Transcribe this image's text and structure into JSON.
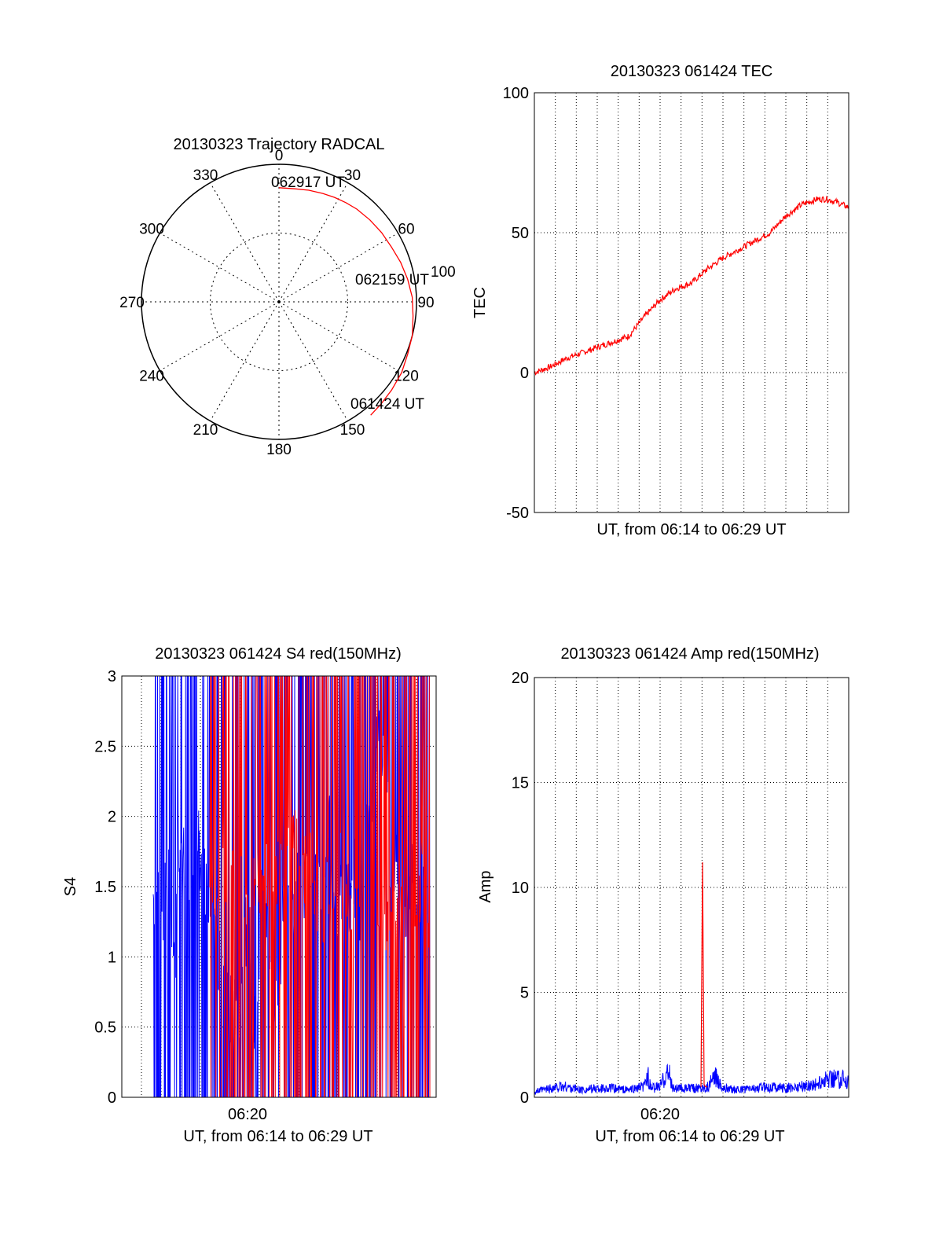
{
  "colors": {
    "red": "#ff0000",
    "blue": "#0000ff",
    "axis": "#000000",
    "grid": "#000000"
  },
  "chart_data": [
    {
      "type": "polar",
      "title": "20130323 Trajectory RADCAL",
      "angle_labels": [
        "0",
        "30",
        "60",
        "90",
        "120",
        "150",
        "180",
        "210",
        "240",
        "270",
        "300",
        "330"
      ],
      "radial_label": "100",
      "rmax": 100,
      "trajectory": {
        "azimuth_deg": [
          0,
          8,
          15,
          22,
          28,
          34,
          40,
          48,
          56,
          64,
          72,
          80,
          88,
          96,
          104,
          112,
          120,
          128,
          135,
          141
        ],
        "radius": [
          83,
          83,
          84,
          85,
          86,
          87,
          88,
          89,
          90,
          91,
          93,
          95,
          97,
          98,
          100,
          101,
          103,
          104,
          105,
          106
        ],
        "start_label": "062917 UT",
        "mid_label": "062159 UT",
        "end_label": "061424 UT"
      }
    },
    {
      "type": "line",
      "title": "20130323 061424 TEC",
      "xlabel": "UT, from 06:14 to 06:29 UT",
      "ylabel": "TEC",
      "ylim": [
        -50,
        100
      ],
      "yticks": [
        "100",
        "50",
        "0",
        "-50"
      ],
      "series": [
        {
          "name": "TEC",
          "color": "red",
          "x": [
            0,
            0.05,
            0.1,
            0.15,
            0.2,
            0.25,
            0.3,
            0.35,
            0.4,
            0.45,
            0.5,
            0.55,
            0.6,
            0.65,
            0.7,
            0.75,
            0.8,
            0.85,
            0.9,
            0.93,
            0.96,
            1.0
          ],
          "y": [
            0,
            2,
            5,
            7,
            9,
            11,
            13,
            20,
            26,
            30,
            32,
            37,
            41,
            44,
            47,
            50,
            56,
            60,
            62,
            62,
            61,
            59
          ]
        }
      ]
    },
    {
      "type": "line",
      "title": "20130323 061424 S4 red(150MHz)",
      "xlabel": "UT, from 06:14 to 06:29 UT",
      "ylabel": "S4",
      "ylim": [
        0,
        3
      ],
      "yticks": [
        "3",
        "2.5",
        "2",
        "1.5",
        "1",
        "0.5",
        "0"
      ],
      "xtick_label": "06:20",
      "series": [
        {
          "name": "S4 blue",
          "color": "blue",
          "oscillation": [
            0,
            3
          ],
          "x": [
            0.1,
            0.12,
            0.13,
            0.14,
            0.15,
            0.16,
            0.17,
            0.18,
            0.2,
            0.22,
            0.24,
            0.26,
            0.28,
            0.3,
            0.32,
            0.34,
            0.36,
            0.38,
            0.4,
            0.42,
            0.44,
            0.46,
            0.48,
            0.5,
            0.52,
            0.54,
            0.56,
            0.58,
            0.6,
            0.62,
            0.64,
            0.66,
            0.68,
            0.7,
            0.72,
            0.74,
            0.76,
            0.78,
            0.8,
            0.82,
            0.84,
            0.86,
            0.88,
            0.9,
            0.92,
            0.94,
            0.96,
            0.98
          ],
          "y": [
            1.4,
            1.3,
            1.0,
            1.5,
            1.7,
            1.1,
            0.9,
            1.9,
            1.6,
            1.3,
            1.9,
            1.6,
            1.5,
            1.0,
            0.8,
            0.6,
            0.7,
            0.5,
            1.4,
            0.6,
            0.8,
            1.3,
            0.7,
            0.9,
            1.5,
            1.2,
            1.6,
            1.4,
            1.7,
            1.5,
            1.5,
            1.9,
            1.3,
            1.5,
            1.4,
            1.6,
            1.2,
            1.9,
            2.2,
            2.7,
            2.3,
            1.8,
            1.5,
            1.4,
            1.6,
            1.3,
            1.5,
            1.6
          ]
        },
        {
          "name": "S4 red",
          "color": "red",
          "oscillation": [
            0,
            3
          ],
          "x": [
            0.28,
            0.45,
            0.55,
            0.6,
            0.63,
            0.66,
            0.7,
            0.72,
            0.75,
            0.78,
            0.8,
            0.82,
            0.84,
            0.86,
            0.88,
            0.9,
            0.92,
            0.94,
            0.96,
            0.98
          ],
          "y": [
            1.5,
            1.5,
            1.8,
            1.6,
            1.2,
            1.5,
            1.7,
            1.3,
            1.6,
            1.5,
            1.9,
            1.4,
            1.2,
            1.6,
            1.3,
            1.5,
            1.1,
            1.4,
            1.6,
            1.2
          ]
        }
      ]
    },
    {
      "type": "line",
      "title": "20130323 061424 Amp red(150MHz)",
      "xlabel": "UT, from 06:14 to 06:29 UT",
      "ylabel": "Amp",
      "ylim": [
        0,
        20
      ],
      "yticks": [
        "20",
        "15",
        "10",
        "5",
        "0"
      ],
      "xtick_label": "06:20",
      "series": [
        {
          "name": "Amp blue",
          "color": "blue",
          "x": [
            0.0,
            0.05,
            0.1,
            0.15,
            0.2,
            0.25,
            0.3,
            0.35,
            0.36,
            0.37,
            0.4,
            0.42,
            0.43,
            0.44,
            0.5,
            0.55,
            0.58,
            0.6,
            0.65,
            0.7,
            0.75,
            0.8,
            0.85,
            0.9,
            0.93,
            0.96,
            1.0
          ],
          "y": [
            0.3,
            0.5,
            0.6,
            0.4,
            0.5,
            0.5,
            0.4,
            0.6,
            1.3,
            0.5,
            0.6,
            1.4,
            1.2,
            0.5,
            0.5,
            0.6,
            1.2,
            0.5,
            0.4,
            0.5,
            0.6,
            0.5,
            0.6,
            0.7,
            1.0,
            1.1,
            0.9
          ]
        },
        {
          "name": "Amp red",
          "color": "red",
          "x": [
            0.53,
            0.535,
            0.54,
            0.545,
            0.55
          ],
          "y": [
            0.5,
            11.2,
            0.6,
            0.5,
            0.5
          ]
        }
      ]
    }
  ]
}
